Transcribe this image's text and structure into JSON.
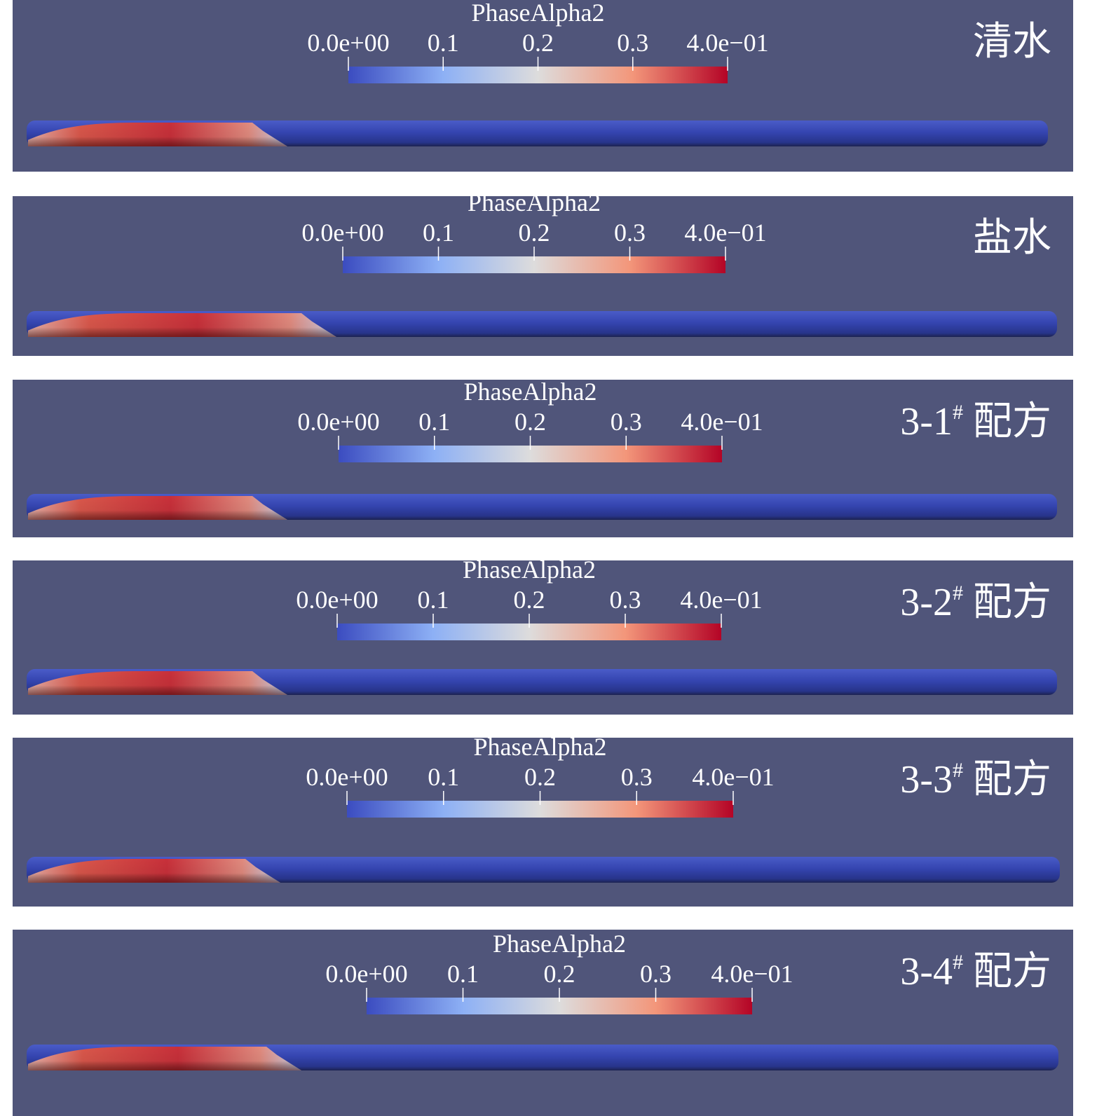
{
  "panels": [
    {
      "label": {
        "main": "清水"
      },
      "colorbar": {
        "title": "PhaseAlpha2",
        "ticks": [
          "0.0e+00",
          "0.1",
          "0.2",
          "0.3",
          "4.0e−01"
        ]
      }
    },
    {
      "label": {
        "main": "盐水"
      },
      "colorbar": {
        "title": "PhaseAlpha2",
        "ticks": [
          "0.0e+00",
          "0.1",
          "0.2",
          "0.3",
          "4.0e−01"
        ]
      }
    },
    {
      "label": {
        "main": "3-1",
        "sup": "#",
        "tail": "配方"
      },
      "colorbar": {
        "title": "PhaseAlpha2",
        "ticks": [
          "0.0e+00",
          "0.1",
          "0.2",
          "0.3",
          "4.0e−01"
        ]
      }
    },
    {
      "label": {
        "main": "3-2",
        "sup": "#",
        "tail": "配方"
      },
      "colorbar": {
        "title": "PhaseAlpha2",
        "ticks": [
          "0.0e+00",
          "0.1",
          "0.2",
          "0.3",
          "4.0e−01"
        ]
      }
    },
    {
      "label": {
        "main": "3-3",
        "sup": "#",
        "tail": "配方"
      },
      "colorbar": {
        "title": "PhaseAlpha2",
        "ticks": [
          "0.0e+00",
          "0.1",
          "0.2",
          "0.3",
          "4.0e−01"
        ]
      }
    },
    {
      "label": {
        "main": "3-4",
        "sup": "#",
        "tail": "配方"
      },
      "colorbar": {
        "title": "PhaseAlpha2",
        "ticks": [
          "0.0e+00",
          "0.1",
          "0.2",
          "0.3",
          "4.0e−01"
        ]
      }
    }
  ]
}
